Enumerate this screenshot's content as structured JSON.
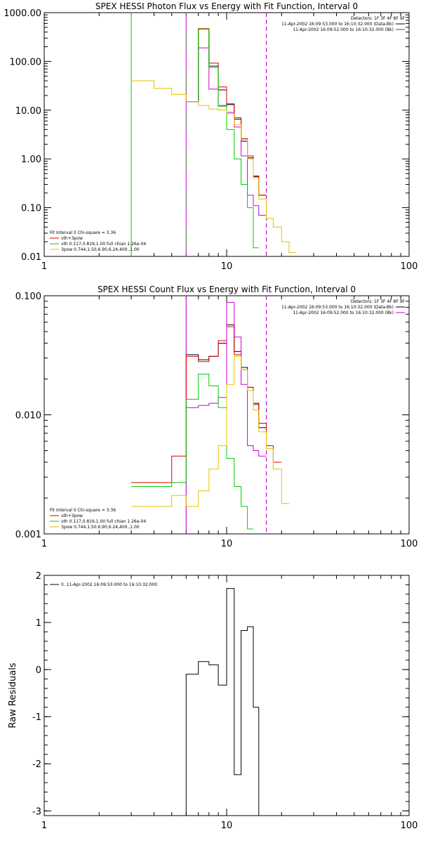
{
  "chart_data": [
    {
      "type": "line",
      "title": "SPEX HESSI Photon Flux vs Energy with Fit Function, Interval 0",
      "ylabel": "",
      "xscale": "log",
      "yscale": "log",
      "xlim": [
        1,
        100
      ],
      "ylim": [
        0.01,
        1000
      ],
      "x_ticks": [
        "1",
        "10",
        "100"
      ],
      "y_ticks": [
        "0.01",
        "0.10",
        "1.00",
        "10.00",
        "100.00",
        "1000.00"
      ],
      "x_tick_values": [
        1,
        10,
        100
      ],
      "y_tick_values": [
        0.01,
        0.1,
        1,
        10,
        100,
        1000
      ],
      "vlines": [
        {
          "x": 3,
          "color": "#00cc00",
          "style": "solid"
        },
        {
          "x": 6,
          "color": "#cc00cc",
          "style": "solid"
        },
        {
          "x": 6,
          "color": "#00cc00",
          "style": "dotted"
        },
        {
          "x": 16.5,
          "color": "#000000",
          "style": "dashed"
        },
        {
          "x": 16.5,
          "color": "#cc00cc",
          "style": "dashed"
        }
      ],
      "legend_top": [
        {
          "text": "Detectors: 1F 3F 4F 8F 9F",
          "color": ""
        },
        {
          "text": "11-Apr-2002 16:09:53.000 to 16:10:32.000 (Data-Bk)",
          "color": "#000000"
        },
        {
          "text": "11-Apr-2002 16:09:52.000 to 16:10:32.000 (Bk)",
          "color": "#cc00cc"
        }
      ],
      "legend_bottom": [
        {
          "text": "Fit Interval 0   Chi-square = 3.36",
          "color": ""
        },
        {
          "text": "vth+3pow",
          "color": "#dd0000"
        },
        {
          "text": "vth 0.117,0.819,1.00  full chian 1.26e-04",
          "color": "#00cc00"
        },
        {
          "text": "3pow 0.744,1.50,6.90,6.24,400.,1.00",
          "color": "#e8c000"
        }
      ],
      "series": [
        {
          "color": "#000000",
          "x": [
            6,
            7,
            8,
            9,
            10,
            11,
            12,
            13,
            14,
            15,
            16.5
          ],
          "y": [
            15,
            460,
            80,
            26,
            13,
            6.5,
            2.3,
            1.05,
            0.43,
            0.18,
            0.18
          ]
        },
        {
          "color": "#dd0000",
          "x": [
            6,
            7,
            8,
            9,
            10,
            11,
            12,
            13,
            14,
            15,
            16.5
          ],
          "y": [
            15,
            470,
            92,
            30,
            13.5,
            7,
            2.6,
            1.15,
            0.45,
            0.18,
            0.18
          ]
        },
        {
          "color": "#cc00cc",
          "x": [
            6,
            7,
            8,
            9,
            10,
            11,
            12,
            13,
            14,
            15,
            16.5
          ],
          "y": [
            15,
            190,
            27,
            12.5,
            9,
            4.5,
            1.15,
            0.18,
            0.11,
            0.07,
            0.07
          ]
        },
        {
          "color": "#00cc00",
          "x": [
            6,
            7,
            8,
            9,
            10,
            11,
            12,
            13,
            14,
            15
          ],
          "y": [
            15,
            460,
            75,
            12,
            4,
            1,
            0.3,
            0.1,
            0.015,
            0.015
          ]
        },
        {
          "color": "#e8c000",
          "x": [
            3,
            4,
            5,
            6,
            7,
            8,
            9,
            10,
            11,
            12,
            13,
            14,
            15,
            16.5,
            18,
            20,
            22,
            24
          ],
          "y": [
            40,
            28,
            21,
            15,
            12.5,
            10.5,
            10,
            8.5,
            5,
            2.5,
            1,
            0.4,
            0.15,
            0.06,
            0.04,
            0.02,
            0.012,
            0.012
          ]
        }
      ]
    },
    {
      "type": "line",
      "title": "SPEX HESSI Count Flux vs Energy with Fit Function, Interval 0",
      "ylabel": "",
      "xscale": "log",
      "yscale": "log",
      "xlim": [
        1,
        100
      ],
      "ylim": [
        0.001,
        0.1
      ],
      "x_ticks": [
        "1",
        "10",
        "100"
      ],
      "y_ticks": [
        "0.001",
        "0.010",
        "0.100"
      ],
      "x_tick_values": [
        1,
        10,
        100
      ],
      "y_tick_values": [
        0.001,
        0.01,
        0.1
      ],
      "vlines": [
        {
          "x": 6,
          "color": "#000000",
          "style": "dotted"
        },
        {
          "x": 6,
          "color": "#cc00cc",
          "style": "solid"
        },
        {
          "x": 16.5,
          "color": "#000000",
          "style": "dashed"
        },
        {
          "x": 16.5,
          "color": "#cc00cc",
          "style": "dashed"
        }
      ],
      "legend_top": [
        {
          "text": "Detectors: 1F 3F 4F 8F 9F",
          "color": ""
        },
        {
          "text": "11-Apr-2002 16:09:53.000 to 16:10:32.000 (Data-Bk)",
          "color": "#000000"
        },
        {
          "text": "11-Apr-2002 16:09:52.000 to 16:10:32.000 (Bk)",
          "color": "#cc00cc"
        }
      ],
      "legend_bottom": [
        {
          "text": "Fit Interval 0   Chi-square = 3.36",
          "color": ""
        },
        {
          "text": "vth+3pow",
          "color": "#dd0000"
        },
        {
          "text": "vth 0.117,0.819,1.00  full chian 1.26e-04",
          "color": "#00cc00"
        },
        {
          "text": "3pow 0.744,1.50,6.90,6.24,400.,1.00",
          "color": "#e8c000"
        }
      ],
      "series": [
        {
          "color": "#000000",
          "x": [
            6,
            7,
            8,
            9,
            10,
            11,
            12,
            13,
            14,
            15,
            16.5
          ],
          "y": [
            0.032,
            0.029,
            0.031,
            0.04,
            0.057,
            0.034,
            0.025,
            0.017,
            0.0125,
            0.0078,
            0.0078
          ]
        },
        {
          "color": "#dd0000",
          "x": [
            3,
            4,
            5,
            6,
            7,
            8,
            9,
            10,
            11,
            12,
            13,
            14,
            15,
            16.5,
            18,
            20
          ],
          "y": [
            0.0027,
            0.0027,
            0.0045,
            0.031,
            0.028,
            0.031,
            0.042,
            0.055,
            0.032,
            0.024,
            0.017,
            0.0122,
            0.0085,
            0.0055,
            0.004,
            0.004
          ]
        },
        {
          "color": "#cc00cc",
          "x": [
            6,
            7,
            8,
            9,
            10,
            11,
            12,
            13,
            14,
            15,
            16.5
          ],
          "y": [
            0.0115,
            0.012,
            0.0125,
            0.014,
            0.088,
            0.045,
            0.018,
            0.0055,
            0.005,
            0.0045,
            0.0045
          ]
        },
        {
          "color": "#00cc00",
          "x": [
            3,
            4,
            5,
            6,
            7,
            8,
            9,
            10,
            11,
            12,
            13,
            14
          ],
          "y": [
            0.0025,
            0.0025,
            0.0027,
            0.0135,
            0.022,
            0.0175,
            0.0115,
            0.0043,
            0.0025,
            0.0017,
            0.0011,
            0.0011
          ]
        },
        {
          "color": "#e8c000",
          "x": [
            3,
            4,
            5,
            6,
            7,
            8,
            9,
            10,
            11,
            12,
            13,
            14,
            15,
            16.5,
            18,
            20,
            22
          ],
          "y": [
            0.0017,
            0.0017,
            0.0021,
            0.0017,
            0.0023,
            0.0035,
            0.0055,
            0.018,
            0.031,
            0.024,
            0.016,
            0.011,
            0.0072,
            0.0052,
            0.0035,
            0.0018,
            0.0018
          ]
        }
      ]
    },
    {
      "type": "line",
      "title": "",
      "ylabel": "Raw Residuals",
      "xscale": "log",
      "yscale": "linear",
      "xlim": [
        1,
        100
      ],
      "ylim": [
        -3.1,
        2
      ],
      "x_ticks": [
        "1",
        "10",
        "100"
      ],
      "y_ticks": [
        "-3",
        "-2",
        "-1",
        "0",
        "1",
        "2"
      ],
      "x_tick_values": [
        1,
        10,
        100
      ],
      "y_tick_values": [
        -3,
        -2,
        -1,
        0,
        1,
        2
      ],
      "vlines": [],
      "legend_top": [],
      "legend_bottom": [],
      "legend_left": {
        "text": "0. 11-Apr-2002 16:09:53.000 to 16:10:32.000",
        "color": "#000000"
      },
      "series": [
        {
          "color": "#000000",
          "x": [
            6,
            7,
            8,
            9,
            10,
            11,
            12,
            13,
            14,
            15,
            16.5
          ],
          "y": [
            -0.1,
            0.17,
            0.1,
            -0.33,
            1.72,
            -2.23,
            0.83,
            0.91,
            -0.8,
            -3.1,
            -3.1
          ],
          "drop_to_bottom": true
        }
      ]
    }
  ]
}
